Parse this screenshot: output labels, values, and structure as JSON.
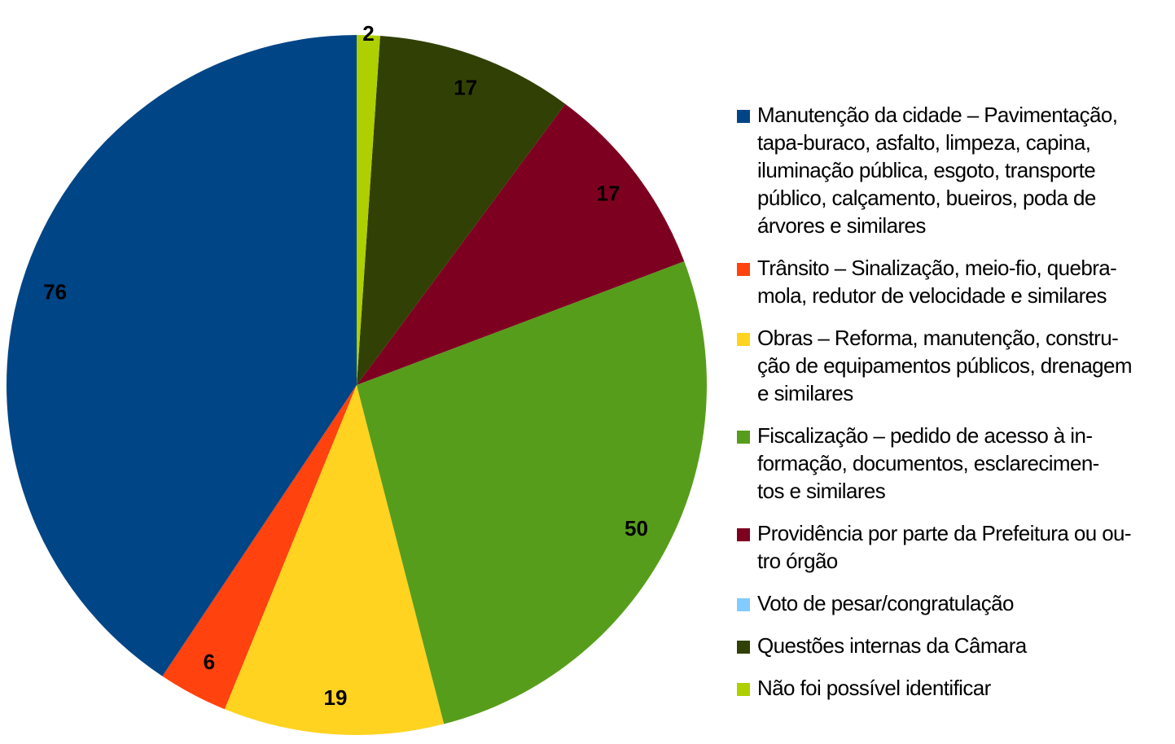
{
  "chart_data": {
    "type": "pie",
    "categories": [
      "Manutenção da cidade – Pavimentação,\ntapa-buraco, asfalto, limpeza, capina,\niluminação pública, esgoto, transporte\npúblico, calçamento, bueiros, poda de\nárvores e similares",
      "Trânsito – Sinalização, meio-fio, quebra-\nmola, redutor de velocidade e similares",
      "Obras – Reforma, manutenção, constru-\nção de equipamentos públicos, drenagem\ne similares",
      "Fiscalização – pedido de acesso à in-\nformação, documentos, esclarecimen-\ntos e similares",
      "Providência por parte da Prefeitura ou ou-\ntro órgão",
      "Voto de pesar/congratulação",
      "Questões internas da Câmara",
      "Não foi possível identificar"
    ],
    "values": [
      76,
      6,
      19,
      50,
      17,
      0,
      17,
      2
    ],
    "colors": [
      "#004586",
      "#ff420e",
      "#ffd320",
      "#579d1c",
      "#7e0021",
      "#83caff",
      "#314004",
      "#aecf00"
    ],
    "direction": "counterclockwise",
    "start": "top",
    "legend": "right"
  }
}
